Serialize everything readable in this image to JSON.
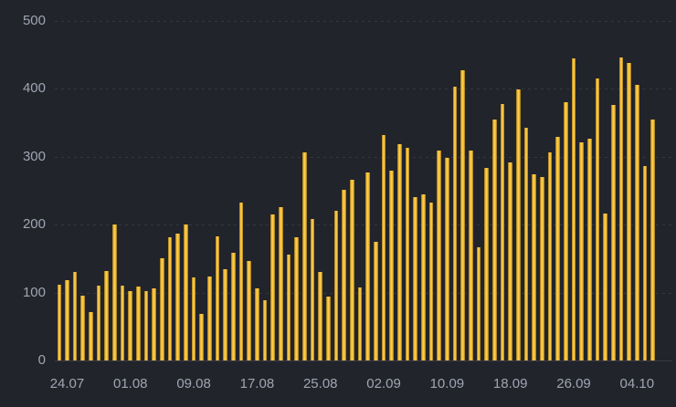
{
  "chart_data": {
    "type": "bar",
    "title": "",
    "xlabel": "",
    "ylabel": "",
    "ylim": [
      0,
      500
    ],
    "yticks": [
      0,
      100,
      200,
      300,
      400,
      500
    ],
    "grid": "horizontal-dashed",
    "legend": "none",
    "x_tick_labels": [
      "24.07",
      "01.08",
      "09.08",
      "17.08",
      "25.08",
      "02.09",
      "10.09",
      "18.09",
      "26.09",
      "04.10"
    ],
    "x_tick_bar_indices": [
      1,
      9,
      17,
      25,
      33,
      41,
      49,
      57,
      65,
      73
    ],
    "values": [
      112,
      119,
      131,
      96,
      72,
      111,
      132,
      200,
      110,
      102,
      109,
      102,
      107,
      151,
      182,
      187,
      200,
      122,
      69,
      124,
      183,
      134,
      159,
      232,
      147,
      106,
      89,
      215,
      226,
      156,
      181,
      307,
      208,
      130,
      95,
      220,
      251,
      266,
      108,
      277,
      175,
      332,
      279,
      318,
      313,
      240,
      244,
      233,
      309,
      298,
      403,
      427,
      309,
      167,
      284,
      355,
      378,
      291,
      399,
      342,
      274,
      270,
      306,
      329,
      380,
      445,
      321,
      327,
      415,
      217,
      376,
      446,
      438,
      406,
      286,
      355
    ],
    "colors": {
      "background": "#22242c",
      "bar": "#fcc73e",
      "bar_edge": "#8a6c20",
      "axis_text": "#a0a5b1",
      "gridline": "#34373f",
      "axis_line": "#3a3d46"
    }
  }
}
